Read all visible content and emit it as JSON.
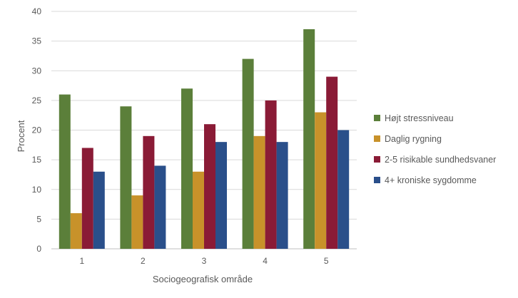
{
  "chart_data": {
    "type": "bar",
    "categories": [
      "1",
      "2",
      "3",
      "4",
      "5"
    ],
    "series": [
      {
        "name": "Højt stressniveau",
        "values": [
          26,
          24,
          27,
          32,
          37
        ],
        "color": "#5b7f3a"
      },
      {
        "name": "Daglig rygning",
        "values": [
          6,
          9,
          13,
          19,
          23
        ],
        "color": "#c8922a"
      },
      {
        "name": "2-5 risikable sundhedsvaner",
        "values": [
          17,
          19,
          21,
          25,
          29
        ],
        "color": "#8a1b36"
      },
      {
        "name": "4+ kroniske sygdomme",
        "values": [
          13,
          14,
          18,
          18,
          20
        ],
        "color": "#2a4f8a"
      }
    ],
    "xlabel": "Sociogeografisk område",
    "ylabel": "Procent",
    "ylim": [
      0,
      40
    ],
    "yticks": [
      0,
      5,
      10,
      15,
      20,
      25,
      30,
      35,
      40
    ],
    "grid": true,
    "legend_position": "right"
  }
}
